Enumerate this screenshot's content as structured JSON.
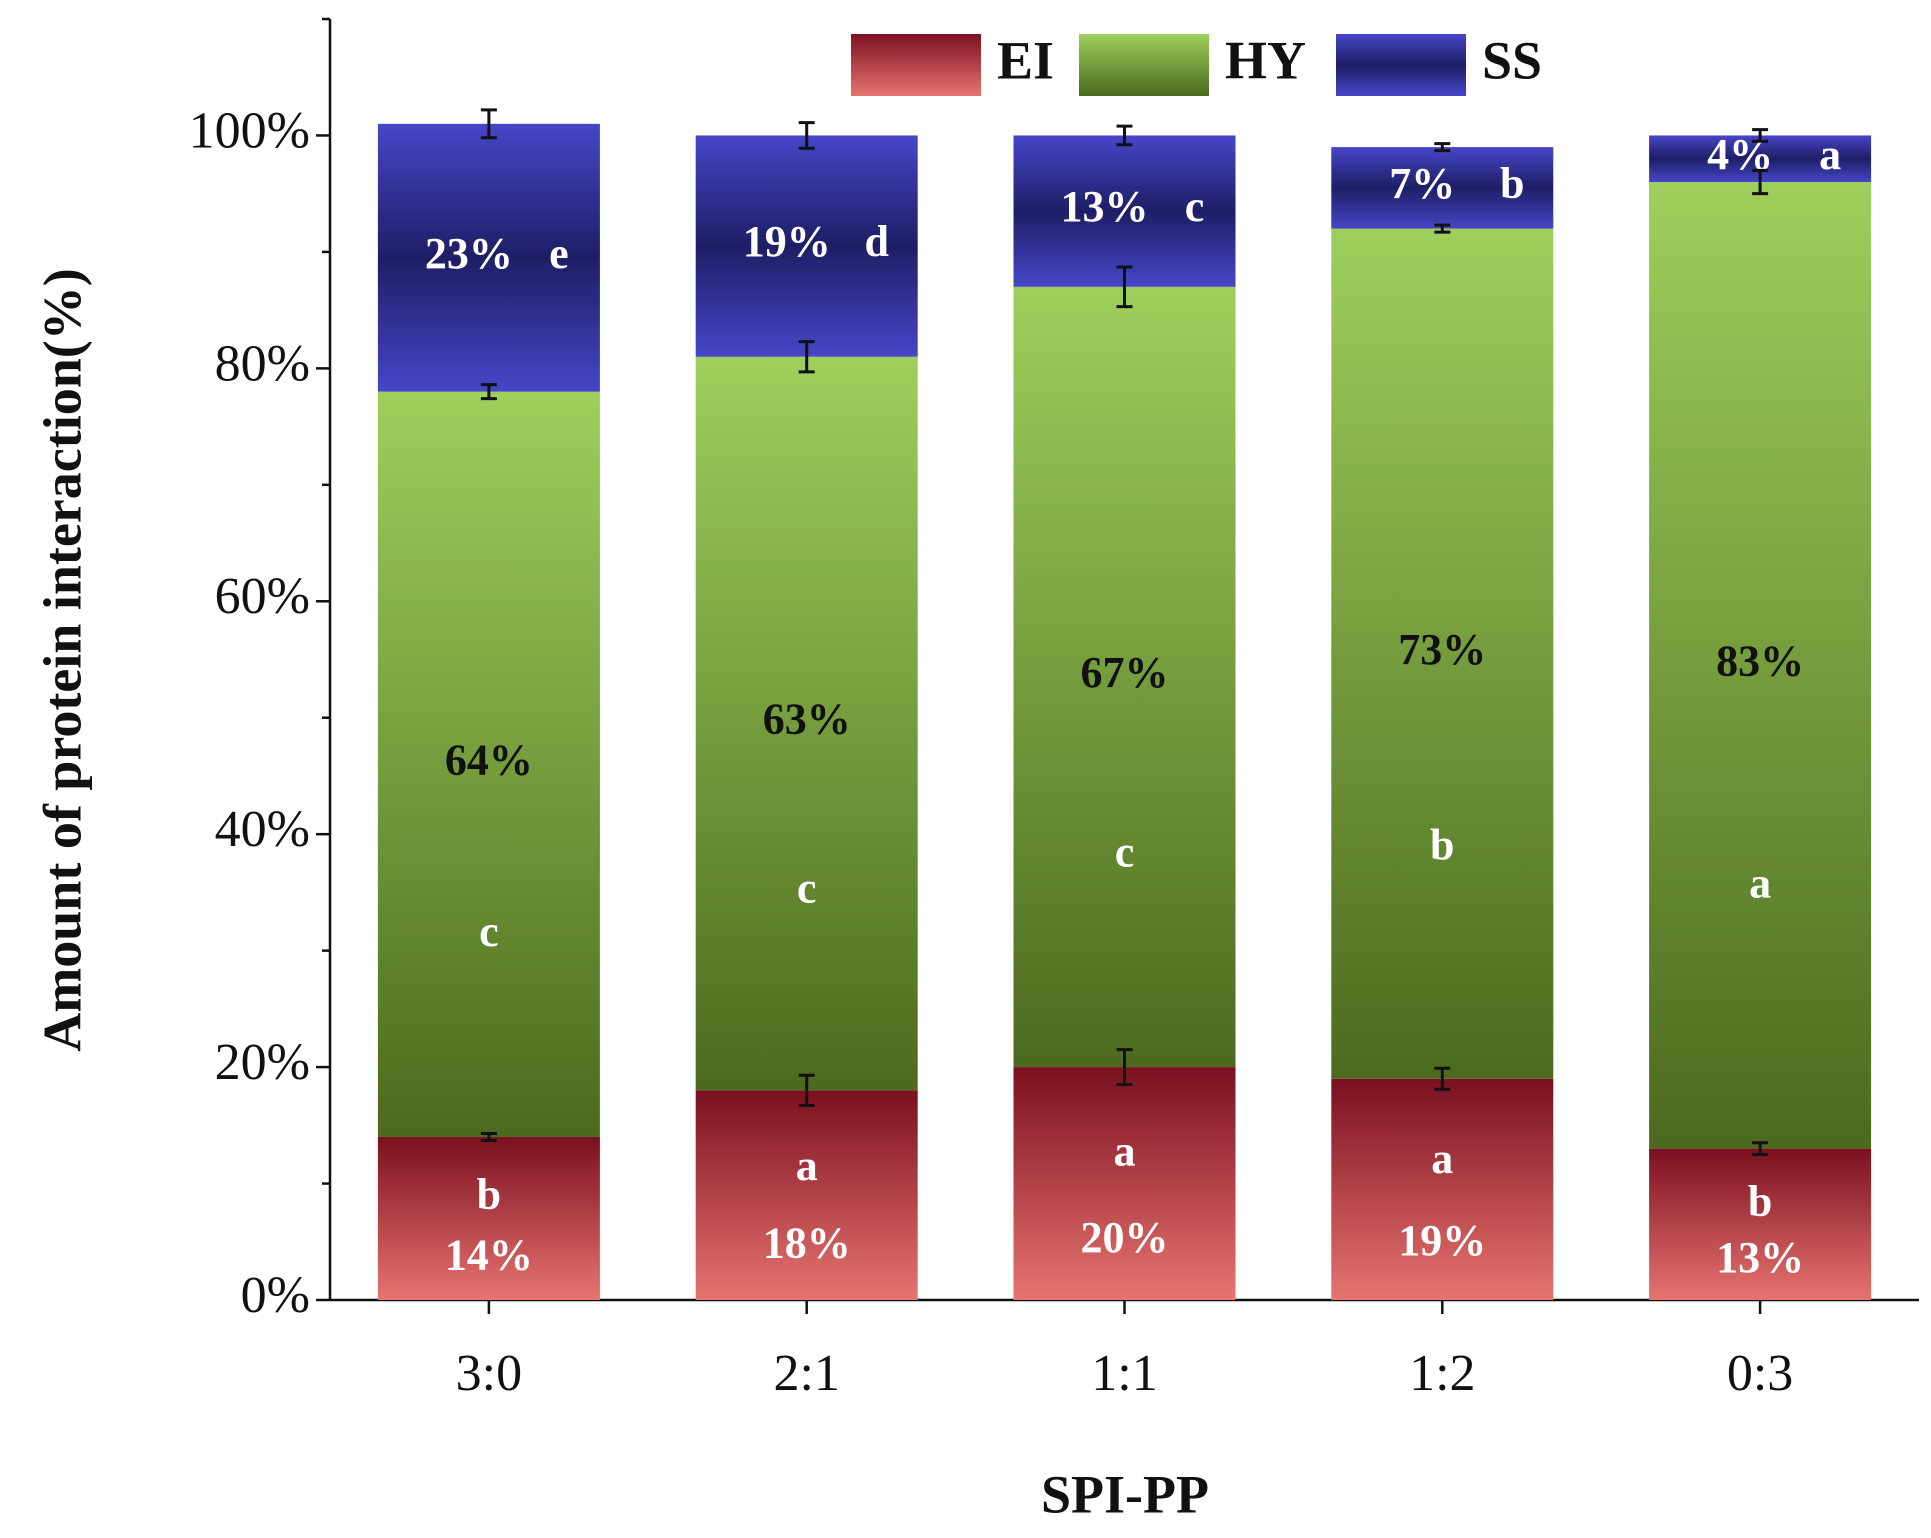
{
  "chart_data": {
    "type": "stacked_bar",
    "xlabel": "SPI-PP",
    "ylabel": "Amount of protein interaction(%)",
    "categories": [
      "3:0",
      "2:1",
      "1:1",
      "1:2",
      "0:3"
    ],
    "series": [
      {
        "name": "EI",
        "gradient": [
          "#7a1020",
          "#e87470"
        ],
        "values": [
          14,
          18,
          20,
          19,
          13
        ],
        "value_labels": [
          "14%",
          "18%",
          "20%",
          "19%",
          "13%"
        ],
        "errors": [
          0.3,
          1.3,
          1.5,
          0.9,
          0.5
        ],
        "letters": [
          "b",
          "a",
          "a",
          "a",
          "b"
        ]
      },
      {
        "name": "HY",
        "gradient": [
          "#9ecf5c",
          "#4c6a1e"
        ],
        "values": [
          64,
          63,
          67,
          73,
          83
        ],
        "value_labels": [
          "64%",
          "63%",
          "67%",
          "73%",
          "83%"
        ],
        "errors": [
          0.6,
          1.3,
          1.7,
          0.3,
          1.0
        ],
        "letters": [
          "c",
          "c",
          "c",
          "b",
          "a"
        ]
      },
      {
        "name": "SS",
        "gradient": [
          "#4646c8",
          "#1e1e66"
        ],
        "values": [
          23,
          19,
          13,
          7,
          4
        ],
        "value_labels": [
          "23%",
          "19%",
          "13%",
          "7%",
          "4%"
        ],
        "errors": [
          1.2,
          1.1,
          0.8,
          0.3,
          0.5
        ],
        "letters": [
          "e",
          "d",
          "c",
          "b",
          "a"
        ]
      }
    ],
    "ylim": [
      0,
      110
    ],
    "yticks": [
      {
        "value": 0,
        "label": "0%"
      },
      {
        "value": 20,
        "label": "20%"
      },
      {
        "value": 40,
        "label": "40%"
      },
      {
        "value": 60,
        "label": "60%"
      },
      {
        "value": 80,
        "label": "80%"
      },
      {
        "value": 100,
        "label": "100%"
      }
    ],
    "minor_yticks": [
      10,
      30,
      50,
      70,
      90,
      110
    ],
    "legend": "top"
  }
}
